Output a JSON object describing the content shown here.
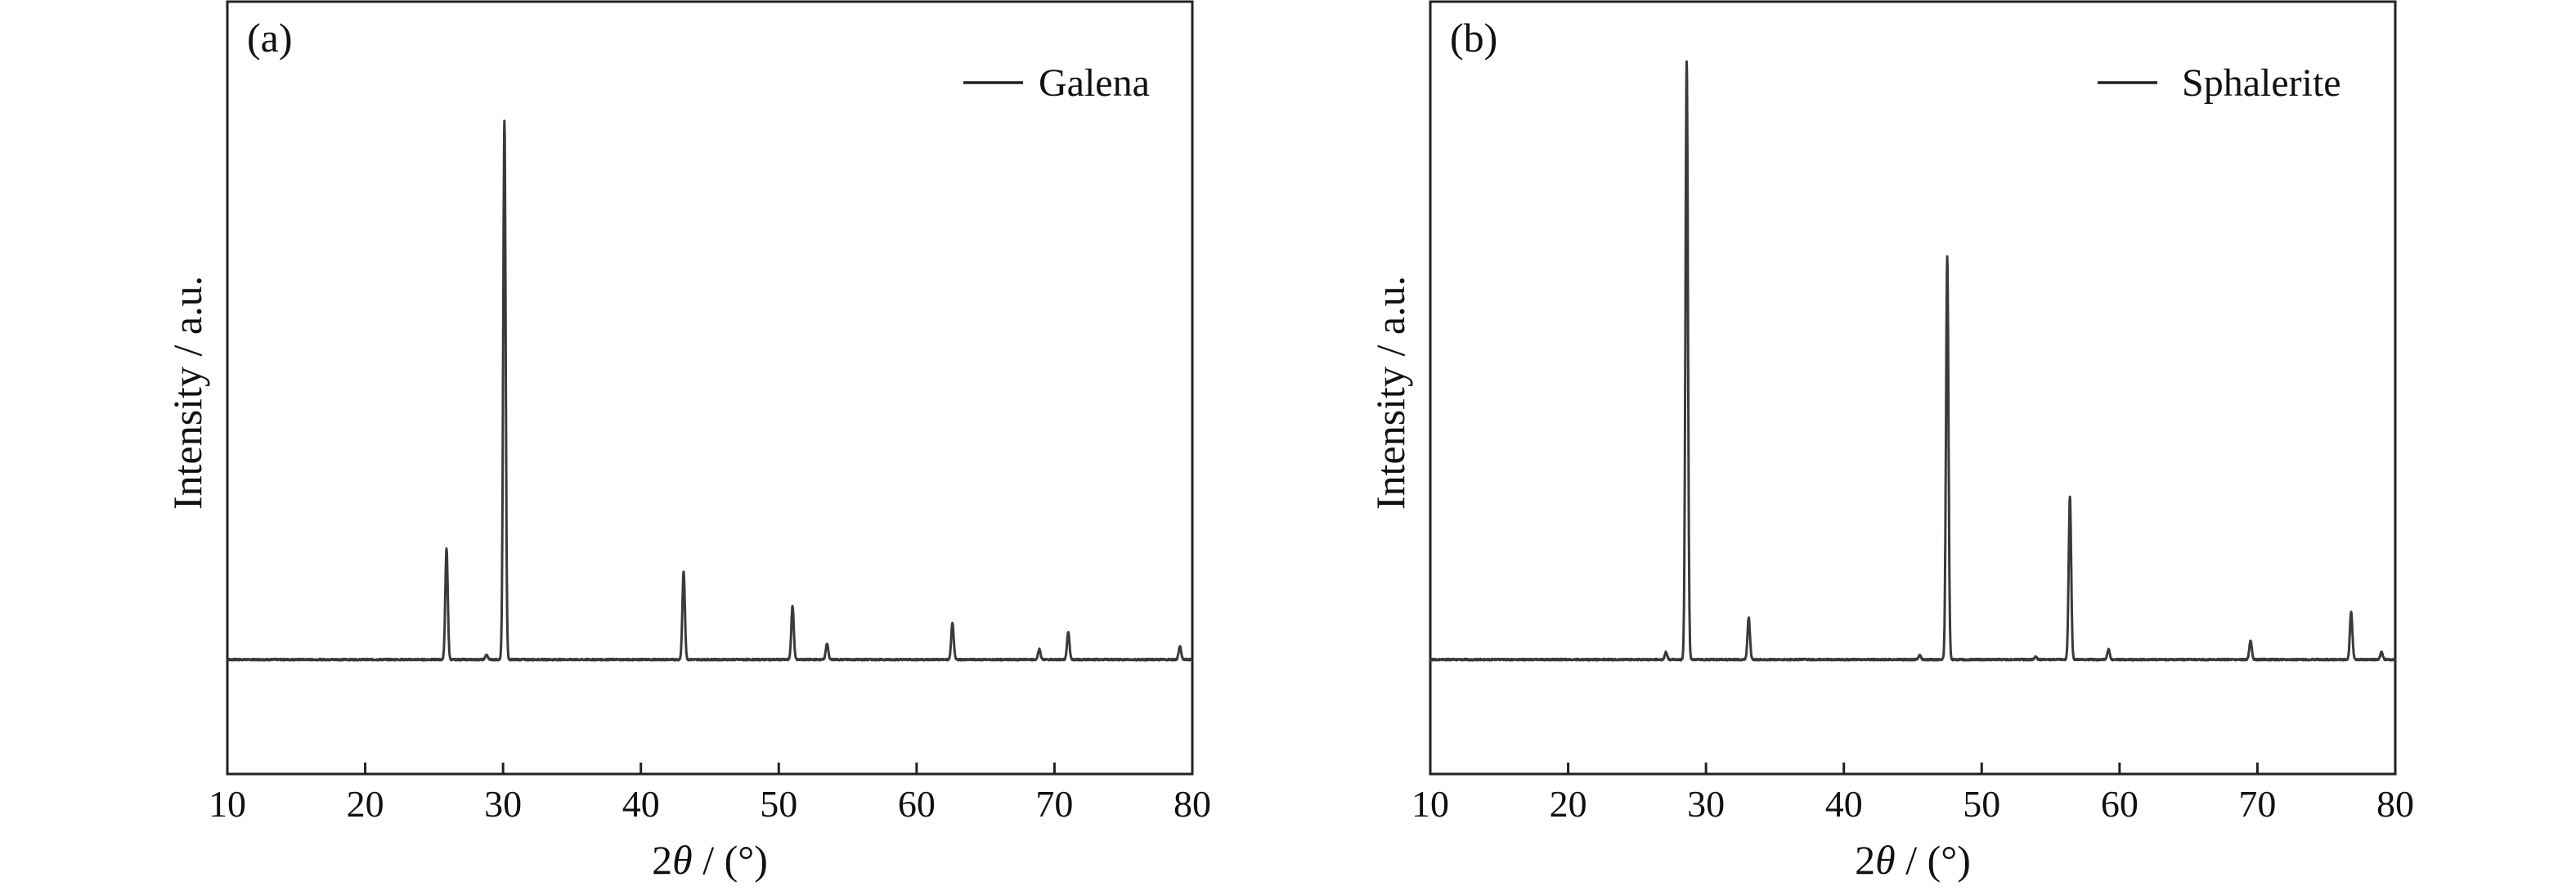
{
  "chart_data": [
    {
      "type": "line",
      "panel_label": "(a)",
      "series": [
        {
          "name": "Galena",
          "color": "#3a3a3a",
          "baseline": 0,
          "peaks": [
            {
              "x": 25.9,
              "height": 19.3
            },
            {
              "x": 28.8,
              "height": 0.8
            },
            {
              "x": 30.1,
              "height": 94.1
            },
            {
              "x": 43.1,
              "height": 15.3
            },
            {
              "x": 51.0,
              "height": 9.3
            },
            {
              "x": 53.5,
              "height": 2.8
            },
            {
              "x": 62.6,
              "height": 6.3
            },
            {
              "x": 68.9,
              "height": 1.8
            },
            {
              "x": 71.0,
              "height": 4.8
            },
            {
              "x": 79.1,
              "height": 2.3
            }
          ]
        }
      ],
      "xlabel_prefix": "2",
      "xlabel_symbol": "θ",
      "xlabel_suffix": " / (°)",
      "ylabel": "Intensity / a.u.",
      "xlim": [
        10,
        80
      ],
      "ylim": [
        -20,
        115
      ],
      "xticks": [
        10,
        20,
        30,
        40,
        50,
        60,
        70,
        80
      ],
      "grid": false,
      "legend_position": "top-right"
    },
    {
      "type": "line",
      "panel_label": "(b)",
      "series": [
        {
          "name": "Sphalerite",
          "color": "#3a3a3a",
          "baseline": 0,
          "peaks": [
            {
              "x": 27.1,
              "height": 1.3
            },
            {
              "x": 28.6,
              "height": 104.5
            },
            {
              "x": 33.1,
              "height": 7.3
            },
            {
              "x": 45.5,
              "height": 0.8
            },
            {
              "x": 47.5,
              "height": 70.4
            },
            {
              "x": 53.9,
              "height": 0.5
            },
            {
              "x": 56.4,
              "height": 28.4
            },
            {
              "x": 59.2,
              "height": 1.8
            },
            {
              "x": 69.5,
              "height": 3.3
            },
            {
              "x": 76.8,
              "height": 8.3
            },
            {
              "x": 79.0,
              "height": 1.3
            }
          ]
        }
      ],
      "xlabel_prefix": "2",
      "xlabel_symbol": "θ",
      "xlabel_suffix": " / (°)",
      "ylabel": "Intensity / a.u.",
      "xlim": [
        10,
        80
      ],
      "ylim": [
        -20,
        115
      ],
      "xticks": [
        10,
        20,
        30,
        40,
        50,
        60,
        70,
        80
      ],
      "grid": false,
      "legend_position": "top-right"
    }
  ]
}
